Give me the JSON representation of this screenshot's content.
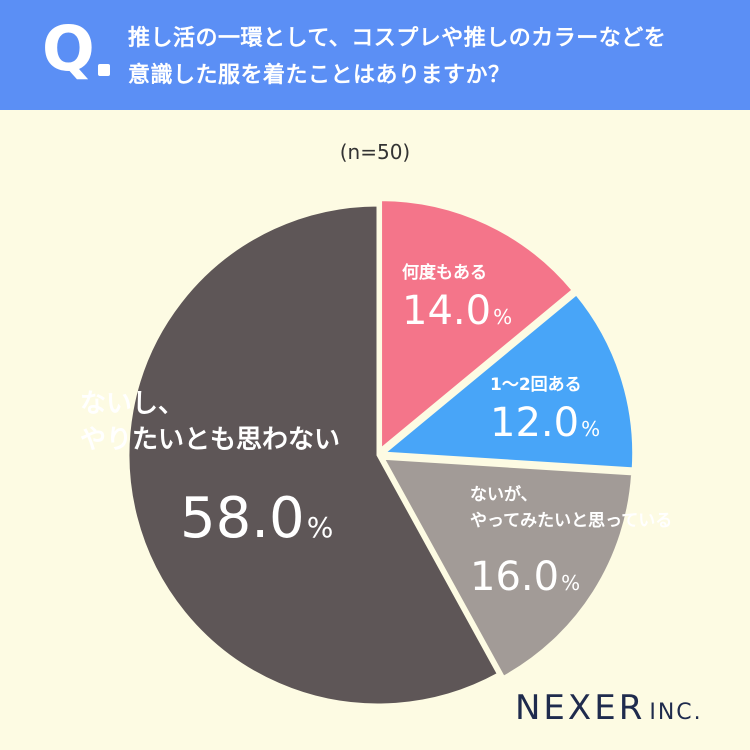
{
  "header": {
    "q_mark": "Q",
    "question_line1": "推し活の一環として、コスプレや推しのカラーなどを",
    "question_line2": "意識した服を着たことはありますか？"
  },
  "sample_size": "(n=50)",
  "logo": {
    "main": "NEXER",
    "suffix": "INC."
  },
  "colors": {
    "header_bg": "#5b8ff5",
    "background": "#fdfbe3",
    "many_times": "#f4758a",
    "once_twice": "#48a5f8",
    "want_to": "#a29b97",
    "no": "#5e5657"
  },
  "chart_data": {
    "type": "pie",
    "unit": "%",
    "slices": [
      {
        "label_lines": [
          "何度もある"
        ],
        "value": 14.0,
        "value_text": "14.0",
        "color": "#f4758a"
      },
      {
        "label_lines": [
          "1〜2回ある"
        ],
        "value": 12.0,
        "value_text": "12.0",
        "color": "#48a5f8"
      },
      {
        "label_lines": [
          "ないが、",
          "やってみたいと思っている"
        ],
        "value": 16.0,
        "value_text": "16.0",
        "color": "#a29b97"
      },
      {
        "label_lines": [
          "ないし、",
          "やりたいとも思わない"
        ],
        "value": 58.0,
        "value_text": "58.0",
        "color": "#5e5657"
      }
    ]
  }
}
